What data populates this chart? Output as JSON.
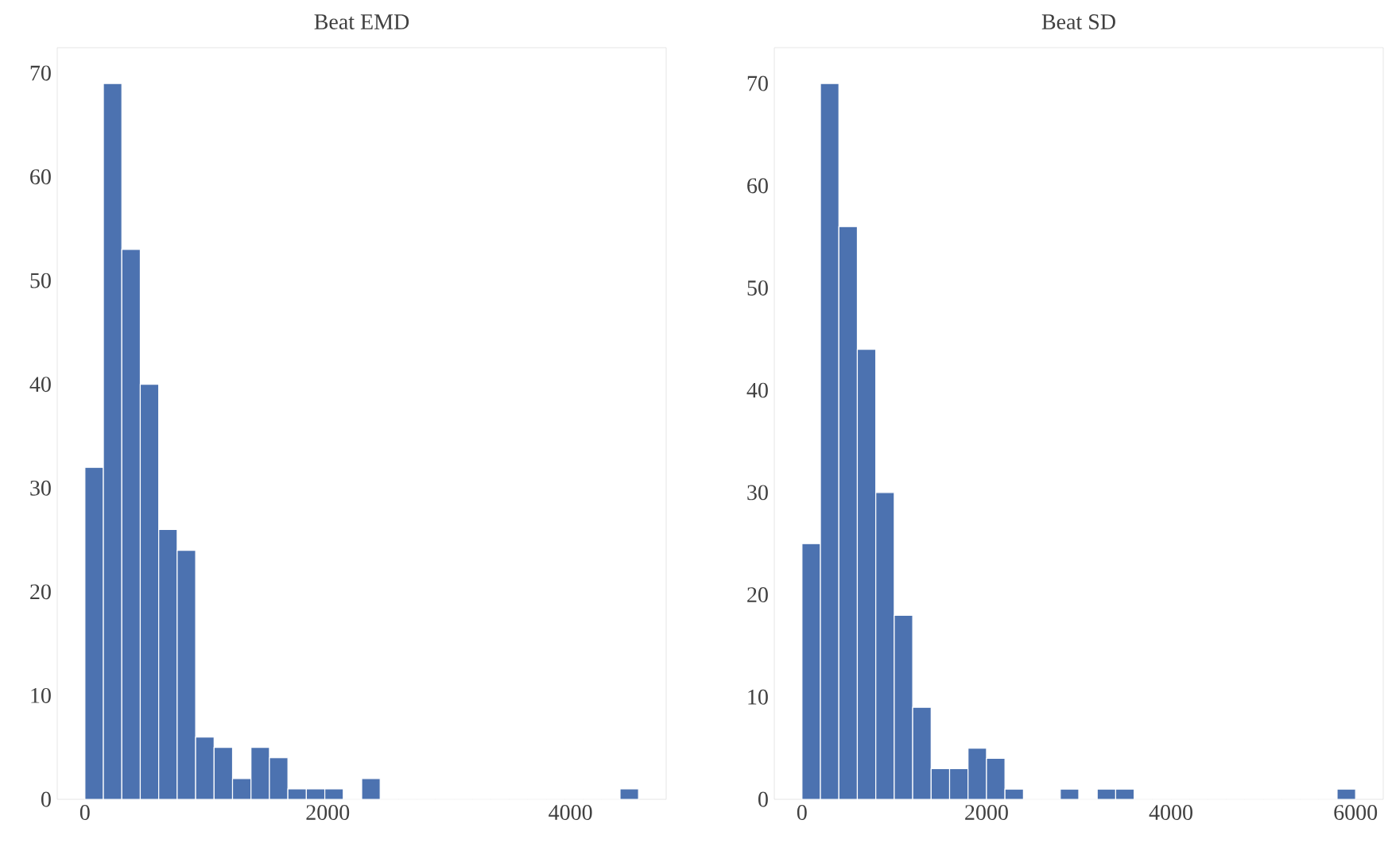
{
  "chart_data": [
    {
      "type": "histogram",
      "title": "Beat EMD",
      "color": "#4c72b0",
      "bins": [
        0,
        152,
        304,
        456,
        608,
        760,
        912,
        1064,
        1216,
        1368,
        1520,
        1672,
        1824,
        1976,
        2128,
        2280,
        2432,
        2584,
        2736,
        2888,
        3040,
        3192,
        3344,
        3496,
        3648,
        3800,
        3952,
        4104,
        4256,
        4408,
        4560
      ],
      "values": [
        32,
        69,
        53,
        40,
        26,
        24,
        6,
        5,
        2,
        5,
        4,
        1,
        1,
        1,
        0,
        2,
        0,
        0,
        0,
        0,
        0,
        0,
        0,
        0,
        0,
        0,
        0,
        0,
        0,
        1
      ],
      "xlim": [
        -228,
        4788
      ],
      "ylim": [
        0,
        72.45
      ],
      "xticks": [
        0,
        2000,
        4000
      ],
      "yticks": [
        0,
        10,
        20,
        30,
        40,
        50,
        60,
        70
      ],
      "grid": false
    },
    {
      "type": "histogram",
      "title": "Beat SD",
      "color": "#4c72b0",
      "bins": [
        0,
        200,
        400,
        600,
        800,
        1000,
        1200,
        1400,
        1600,
        1800,
        2000,
        2200,
        2400,
        2600,
        2800,
        3000,
        3200,
        3400,
        3600,
        3800,
        4000,
        4200,
        4400,
        4600,
        4800,
        5000,
        5200,
        5400,
        5600,
        5800,
        6000
      ],
      "values": [
        25,
        70,
        56,
        44,
        30,
        18,
        9,
        3,
        3,
        5,
        4,
        1,
        0,
        0,
        1,
        0,
        1,
        1,
        0,
        0,
        0,
        0,
        0,
        0,
        0,
        0,
        0,
        0,
        0,
        1
      ],
      "xlim": [
        -300,
        6300
      ],
      "ylim": [
        0,
        73.5
      ],
      "xticks": [
        0,
        2000,
        4000,
        6000
      ],
      "yticks": [
        0,
        10,
        20,
        30,
        40,
        50,
        60,
        70
      ],
      "grid": false
    }
  ]
}
